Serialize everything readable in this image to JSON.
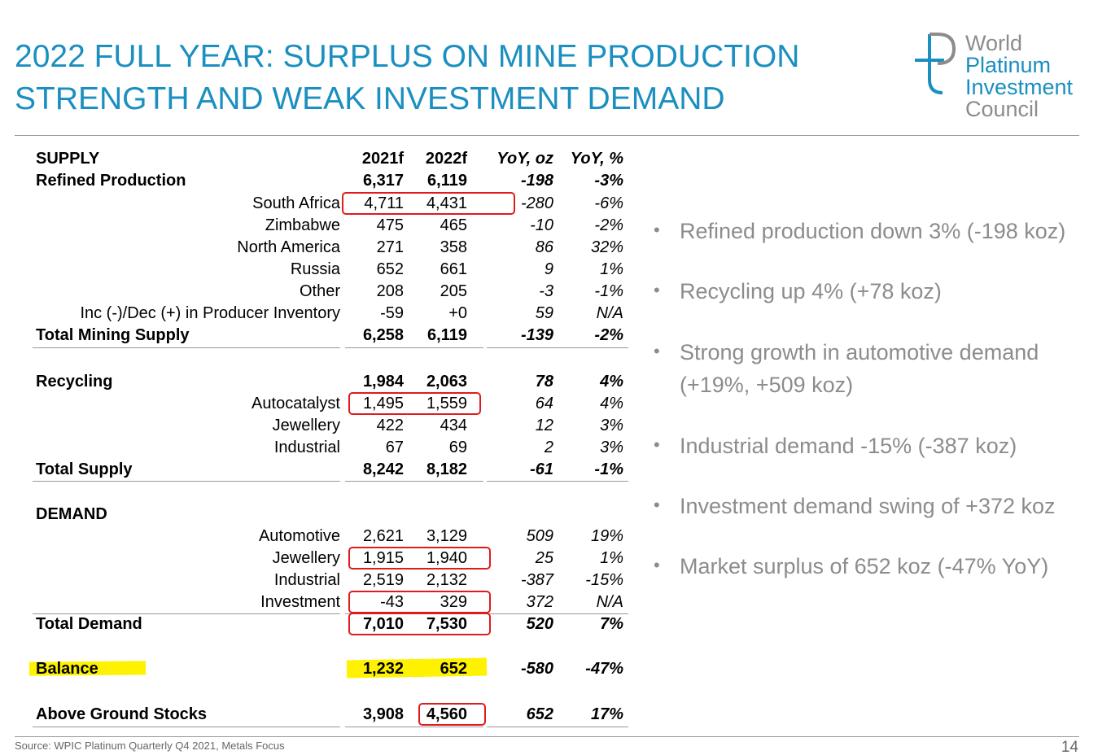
{
  "header": {
    "title": [
      "2022 FULL YEAR: SURPLUS ON MINE PRODUCTION",
      "STRENGTH AND WEAK INVESTMENT DEMAND"
    ],
    "logo": [
      "World",
      "Platinum",
      "Investment",
      "Council"
    ]
  },
  "table": {
    "header": [
      "SUPPLY",
      "2021f",
      "2022f",
      "YoY, oz",
      "YoY, %"
    ],
    "rows": [
      [
        "Refined Production",
        "6,317",
        "6,119",
        "-198",
        "-3%"
      ],
      [
        "South Africa",
        "4,711",
        "4,431",
        "-280",
        "-6%"
      ],
      [
        "Zimbabwe",
        "475",
        "465",
        "-10",
        "-2%"
      ],
      [
        "North America",
        "271",
        "358",
        "86",
        "32%"
      ],
      [
        "Russia",
        "652",
        "661",
        "9",
        "1%"
      ],
      [
        "Other",
        "208",
        "205",
        "-3",
        "-1%"
      ],
      [
        "Inc (-)/Dec (+) in Producer Inventory",
        "-59",
        "+0",
        "59",
        "N/A"
      ],
      [
        "Total Mining Supply",
        "6,258",
        "6,119",
        "-139",
        "-2%"
      ],
      [
        "Recycling",
        "1,984",
        "2,063",
        "78",
        "4%"
      ],
      [
        "Autocatalyst",
        "1,495",
        "1,559",
        "64",
        "4%"
      ],
      [
        "Jewellery",
        "422",
        "434",
        "12",
        "3%"
      ],
      [
        "Industrial",
        "67",
        "69",
        "2",
        "3%"
      ],
      [
        "Total Supply",
        "8,242",
        "8,182",
        "-61",
        "-1%"
      ],
      [
        "DEMAND"
      ],
      [
        "Automotive",
        "2,621",
        "3,129",
        "509",
        "19%"
      ],
      [
        "Jewellery",
        "1,915",
        "1,940",
        "25",
        "1%"
      ],
      [
        "Industrial",
        "2,519",
        "2,132",
        "-387",
        "-15%"
      ],
      [
        "Investment",
        "-43",
        "329",
        "372",
        "N/A"
      ],
      [
        "Total Demand",
        "7,010",
        "7,530",
        "520",
        "7%"
      ],
      [
        "Balance",
        "1,232",
        "652",
        "-580",
        "-47%"
      ],
      [
        "Above Ground Stocks",
        "3,908",
        "4,560",
        "652",
        "17%"
      ]
    ]
  },
  "bullets": [
    [
      "Refined production down 3% (-198 koz)"
    ],
    [
      "Recycling up 4% (+78 koz)"
    ],
    [
      "Strong growth in automotive demand",
      "(+19%, +509 koz)"
    ],
    [
      "Industrial demand -15% (-387 koz)"
    ],
    [
      "Investment demand swing of +372 koz"
    ],
    [
      "Market surplus of 652 koz (-47% YoY)"
    ]
  ],
  "footer": {
    "source": "Source: WPIC Platinum Quarterly Q4 2021, Metals Focus",
    "page": "14"
  }
}
